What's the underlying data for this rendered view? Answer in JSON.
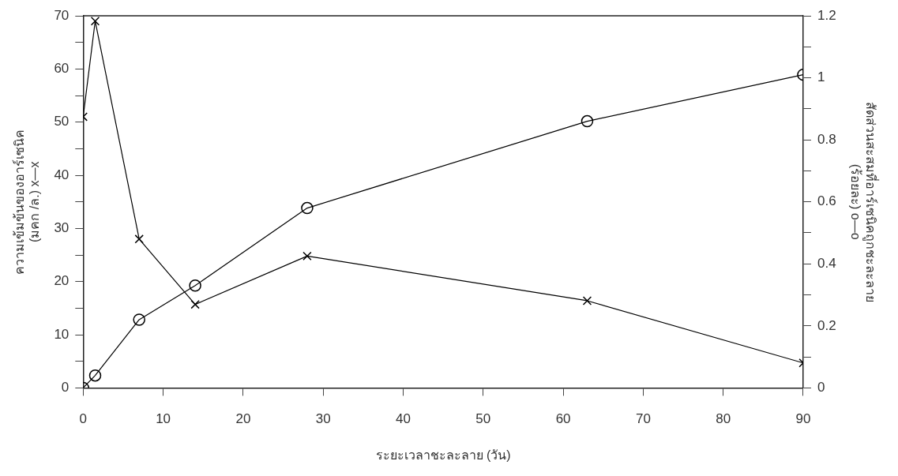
{
  "chart_data": {
    "type": "line",
    "xlabel": "ระยะเวลาชะละลาย (วัน)",
    "ylabel": "ความเข้มข้นของอาร์เซนิค\n(มคก /ล.) x—x",
    "y2label": "สัดส่วนสะสมที่อาร์เซนิคถูกชะละลาย\n(ร้อยละ) o—o",
    "x": [
      0,
      1.5,
      7,
      14,
      28,
      63,
      90
    ],
    "series": [
      {
        "color": "#000000",
        "marker": "cross",
        "axis": "y",
        "values": [
          51,
          69,
          28,
          15.7,
          24.8,
          16.4,
          4.7
        ]
      },
      {
        "color": "#000000",
        "marker": "circle",
        "axis": "y2",
        "values": [
          0,
          0.04,
          0.22,
          0.33,
          0.58,
          0.86,
          1.01
        ]
      }
    ],
    "xlim": [
      0,
      90
    ],
    "xticks": [
      0,
      10,
      20,
      30,
      40,
      50,
      60,
      70,
      80,
      90
    ],
    "ylim": [
      0,
      70
    ],
    "yticks": [
      0,
      {
        "value": 5,
        "label": null
      },
      10,
      {
        "value": 15,
        "label": null
      },
      20,
      {
        "value": 25,
        "label": null
      },
      30,
      {
        "value": 35,
        "label": null
      },
      40,
      {
        "value": 45,
        "label": null
      },
      50,
      {
        "value": 55,
        "label": null
      },
      60,
      {
        "value": 65,
        "label": null
      },
      70
    ],
    "y2lim": [
      0,
      1.2
    ],
    "y2ticks": [
      0,
      {
        "value": 0.1,
        "label": null
      },
      0.2,
      {
        "value": 0.3,
        "label": null
      },
      0.4,
      {
        "value": 0.5,
        "label": null
      },
      0.6,
      {
        "value": 0.7,
        "label": null
      },
      0.8,
      {
        "value": 0.9,
        "label": null
      },
      1,
      {
        "value": 1.1,
        "label": null
      },
      1.2
    ],
    "grid": false,
    "legend": false,
    "line_style": "solid"
  }
}
